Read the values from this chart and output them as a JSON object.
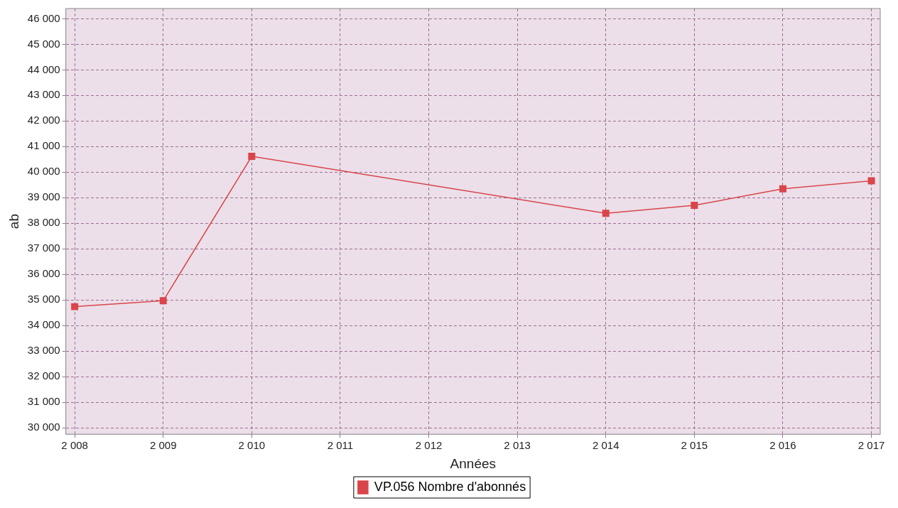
{
  "chart_data": {
    "type": "line",
    "xlabel": "Années",
    "ylabel": "ab",
    "x": [
      2008,
      2009,
      2010,
      2014,
      2015,
      2016,
      2017
    ],
    "series": [
      {
        "name": "VP.056 Nombre d'abonnés",
        "color": "#d9454a",
        "values": [
          34740,
          34970,
          40620,
          38390,
          38700,
          39350,
          39660
        ]
      }
    ],
    "xlim": [
      2007.9,
      2017.1
    ],
    "xticks": [
      {
        "value": 2008,
        "label": "2 008"
      },
      {
        "value": 2009,
        "label": "2 009"
      },
      {
        "value": 2010,
        "label": "2 010"
      },
      {
        "value": 2011,
        "label": "2 011"
      },
      {
        "value": 2012,
        "label": "2 012"
      },
      {
        "value": 2013,
        "label": "2 013"
      },
      {
        "value": 2014,
        "label": "2 014"
      },
      {
        "value": 2015,
        "label": "2 015"
      },
      {
        "value": 2016,
        "label": "2 016"
      },
      {
        "value": 2017,
        "label": "2 017"
      }
    ],
    "ylim": [
      29750,
      46400
    ],
    "yticks": [
      {
        "value": 30000,
        "label": "30 000"
      },
      {
        "value": 31000,
        "label": "31 000"
      },
      {
        "value": 32000,
        "label": "32 000"
      },
      {
        "value": 33000,
        "label": "33 000"
      },
      {
        "value": 34000,
        "label": "34 000"
      },
      {
        "value": 35000,
        "label": "35 000"
      },
      {
        "value": 36000,
        "label": "36 000"
      },
      {
        "value": 37000,
        "label": "37 000"
      },
      {
        "value": 38000,
        "label": "38 000"
      },
      {
        "value": 39000,
        "label": "39 000"
      },
      {
        "value": 40000,
        "label": "40 000"
      },
      {
        "value": 41000,
        "label": "41 000"
      },
      {
        "value": 42000,
        "label": "42 000"
      },
      {
        "value": 43000,
        "label": "43 000"
      },
      {
        "value": 44000,
        "label": "44 000"
      },
      {
        "value": 45000,
        "label": "45 000"
      },
      {
        "value": 46000,
        "label": "46 000"
      }
    ],
    "grid": true,
    "legend": "bottom",
    "marker": "square",
    "line_style": "solid"
  }
}
